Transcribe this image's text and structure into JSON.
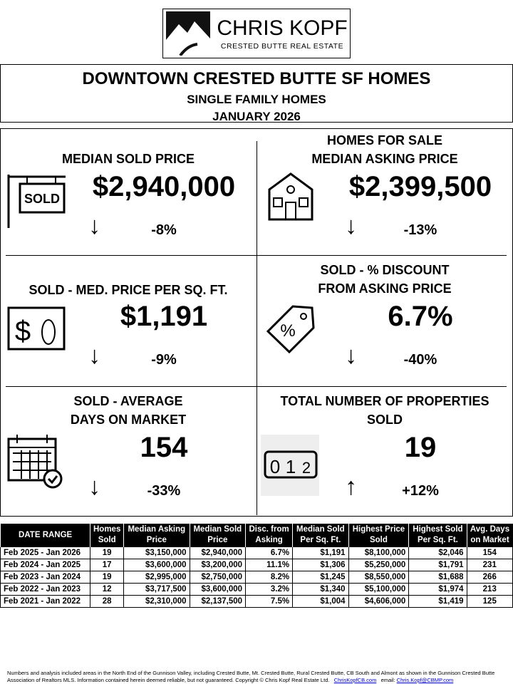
{
  "logo": {
    "name": "CHRIS KOPF",
    "tagline": "CRESTED BUTTE REAL ESTATE"
  },
  "header": {
    "title": "DOWNTOWN CRESTED BUTTE SF HOMES",
    "subtitle": "SINGLE FAMILY HOMES",
    "period": "JANUARY 2026"
  },
  "metrics": [
    {
      "label1": "MEDIAN SOLD PRICE",
      "label2": "",
      "value": "$2,940,000",
      "change": "-8%",
      "direction": "down",
      "icon": "sold-sign-icon"
    },
    {
      "label1": "HOMES FOR SALE",
      "label2": "MEDIAN ASKING PRICE",
      "value": "$2,399,500",
      "change": "-13%",
      "direction": "down",
      "icon": "house-icon"
    },
    {
      "label1": "SOLD - MED. PRICE PER SQ. FT.",
      "label2": "",
      "value": "$1,191",
      "change": "-9%",
      "direction": "down",
      "icon": "dollar-footprint-icon"
    },
    {
      "label1": "SOLD - % DISCOUNT",
      "label2": "FROM ASKING PRICE",
      "value": "6.7%",
      "change": "-40%",
      "direction": "down",
      "icon": "price-tag-icon"
    },
    {
      "label1": "SOLD - AVERAGE",
      "label2": "DAYS ON MARKET",
      "value": "154",
      "change": "-33%",
      "direction": "down",
      "icon": "calendar-icon"
    },
    {
      "label1": "TOTAL NUMBER OF PROPERTIES",
      "label2": "SOLD",
      "value": "19",
      "change": "+12%",
      "direction": "up",
      "icon": "counter-icon"
    }
  ],
  "arrows": {
    "down": "↓",
    "up": "↑"
  },
  "table": {
    "headers": [
      [
        "DATE RANGE",
        ""
      ],
      [
        "Homes",
        "Sold"
      ],
      [
        "Median Asking",
        "Price"
      ],
      [
        "Median Sold",
        "Price"
      ],
      [
        "Disc. from",
        "Asking"
      ],
      [
        "Median Sold",
        "Per Sq. Ft."
      ],
      [
        "Highest Price",
        "Sold"
      ],
      [
        "Highest Sold",
        "Per Sq. Ft."
      ],
      [
        "Avg. Days",
        "on Market"
      ]
    ],
    "rows": [
      [
        "Feb 2025 - Jan 2026",
        "19",
        "$3,150,000",
        "$2,940,000",
        "6.7%",
        "$1,191",
        "$8,100,000",
        "$2,046",
        "154"
      ],
      [
        "Feb 2024 - Jan 2025",
        "17",
        "$3,600,000",
        "$3,200,000",
        "11.1%",
        "$1,306",
        "$5,250,000",
        "$1,791",
        "231"
      ],
      [
        "Feb 2023 - Jan 2024",
        "19",
        "$2,995,000",
        "$2,750,000",
        "8.2%",
        "$1,245",
        "$8,550,000",
        "$1,688",
        "266"
      ],
      [
        "Feb 2022 - Jan 2023",
        "12",
        "$3,717,500",
        "$3,600,000",
        "3.2%",
        "$1,340",
        "$5,100,000",
        "$1,974",
        "213"
      ],
      [
        "Feb 2021 - Jan 2022",
        "28",
        "$2,310,000",
        "$2,137,500",
        "7.5%",
        "$1,004",
        "$4,606,000",
        "$1,419",
        "125"
      ]
    ]
  },
  "footer": {
    "text": "Numbers and analysis included areas in the North End of the Gunnison Valley, including Crested Butte, Mt. Crested Butte, Rural Crested Butte, CB South and Almont as shown in the Gunnison Crested Butte Association of Realtors MLS.  Information contained herein deemed reliable, but not guaranteed. Copyright © Chris Kopf Real Estate Ltd.",
    "website": "ChrisKopfCB.com",
    "email_label": "email:",
    "email": "Chris.Kopf@CBMP.com"
  }
}
